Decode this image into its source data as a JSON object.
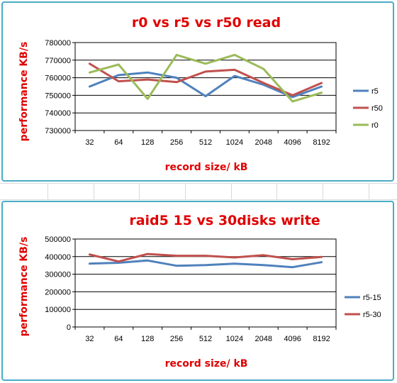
{
  "chart_data": [
    {
      "type": "line",
      "title": "r0 vs r5 vs r50 read",
      "xlabel": "record size/ kB",
      "ylabel": "performance KB/s",
      "categories": [
        "32",
        "64",
        "128",
        "256",
        "512",
        "1024",
        "2048",
        "4096",
        "8192"
      ],
      "ylim": [
        730000,
        780000
      ],
      "yticks": [
        "730000",
        "740000",
        "750000",
        "760000",
        "770000",
        "780000"
      ],
      "grid": true,
      "legend": "right",
      "series": [
        {
          "name": "r5",
          "color": "#4f81bd",
          "values": [
            755000,
            761500,
            763000,
            760000,
            749500,
            761000,
            756000,
            749000,
            755000
          ]
        },
        {
          "name": "r50",
          "color": "#c0504d",
          "values": [
            768000,
            758000,
            759000,
            757500,
            763500,
            764500,
            757000,
            750000,
            757000
          ]
        },
        {
          "name": "r0",
          "color": "#9bbb59",
          "values": [
            763000,
            767500,
            748000,
            773000,
            768000,
            773000,
            765000,
            746500,
            751500
          ]
        }
      ]
    },
    {
      "type": "line",
      "title": "raid5 15 vs 30disks write",
      "xlabel": "record size/ kB",
      "ylabel": "performance KB/s",
      "categories": [
        "32",
        "64",
        "128",
        "256",
        "512",
        "1024",
        "2048",
        "4096",
        "8192"
      ],
      "ylim": [
        0,
        500000
      ],
      "yticks": [
        "0",
        "100000",
        "200000",
        "300000",
        "400000",
        "500000"
      ],
      "grid": true,
      "legend": "right",
      "series": [
        {
          "name": "r5-15",
          "color": "#4f81bd",
          "values": [
            360000,
            365000,
            378000,
            348000,
            352000,
            360000,
            352000,
            340000,
            368000
          ]
        },
        {
          "name": "r5-30",
          "color": "#c0504d",
          "values": [
            412000,
            372000,
            415000,
            405000,
            405000,
            395000,
            408000,
            385000,
            398000
          ]
        }
      ]
    }
  ]
}
